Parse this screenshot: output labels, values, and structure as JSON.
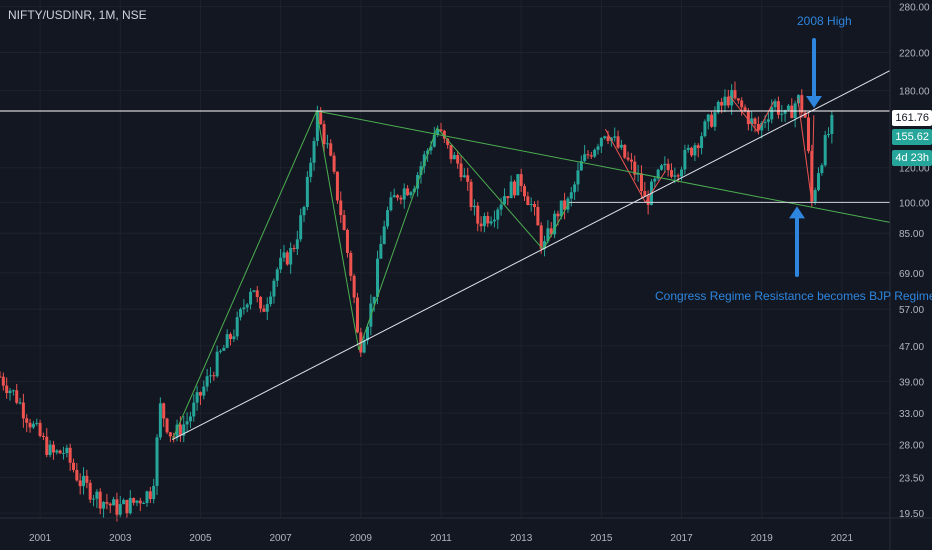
{
  "symbol_label": "NIFTY/USDINR, 1M, NSE",
  "annotations": {
    "top": "2008 High",
    "bottom": "Congress Regime Resistance becomes BJP Regimes"
  },
  "price_axis": {
    "ticks": [
      "280.00",
      "220.00",
      "180.00",
      "120.00",
      "100.00",
      "85.00",
      "69.00",
      "57.00",
      "47.00",
      "39.00",
      "33.00",
      "28.00",
      "23.50",
      "19.50"
    ],
    "ticks_values": [
      280,
      220,
      180,
      120,
      100,
      85,
      69,
      57,
      47,
      39,
      33,
      28,
      23.5,
      19.5
    ],
    "labels": {
      "level_2008": "161.76",
      "last_price": "155.62",
      "countdown": "4d 23h"
    }
  },
  "time_axis": {
    "ticks": [
      "2001",
      "2003",
      "2005",
      "2007",
      "2009",
      "2011",
      "2013",
      "2015",
      "2017",
      "2019",
      "2021"
    ]
  },
  "colors": {
    "background": "#131722",
    "up": "#26a69a",
    "down": "#ef5350",
    "green_line": "#4caf50",
    "red_line": "#ef5350",
    "trendline": "#e0e3eb",
    "annotation": "#2e86de",
    "label_bg_last": "#26a69a",
    "label_bg_level": "#ffffff"
  },
  "chart_data": {
    "type": "candlestick",
    "title": "NIFTY/USDINR, 1M, NSE",
    "x_range": [
      2000.0,
      2022.2
    ],
    "y_range": [
      19.0,
      290.0
    ],
    "y_scale": "log",
    "horizontal_levels": [
      161.76,
      100.0
    ],
    "price_path": [
      [
        2000.0,
        40.0
      ],
      [
        2000.4,
        36.0
      ],
      [
        2000.8,
        31.0
      ],
      [
        2001.3,
        26.5
      ],
      [
        2001.6,
        27.0
      ],
      [
        2002.0,
        23.0
      ],
      [
        2002.5,
        21.0
      ],
      [
        2002.9,
        20.0
      ],
      [
        2003.3,
        20.5
      ],
      [
        2003.8,
        22.0
      ],
      [
        2004.0,
        34.0
      ],
      [
        2004.3,
        29.0
      ],
      [
        2004.7,
        32.0
      ],
      [
        2005.1,
        38.0
      ],
      [
        2005.5,
        45.0
      ],
      [
        2005.9,
        52.0
      ],
      [
        2006.3,
        66.0
      ],
      [
        2006.5,
        55.0
      ],
      [
        2006.9,
        70.0
      ],
      [
        2007.3,
        78.0
      ],
      [
        2007.6,
        98.0
      ],
      [
        2007.9,
        160.0
      ],
      [
        2008.2,
        130.0
      ],
      [
        2008.5,
        95.0
      ],
      [
        2008.8,
        65.0
      ],
      [
        2008.95,
        46.0
      ],
      [
        2009.3,
        60.0
      ],
      [
        2009.6,
        92.0
      ],
      [
        2009.9,
        105.0
      ],
      [
        2010.3,
        110.0
      ],
      [
        2010.9,
        148.0
      ],
      [
        2011.2,
        130.0
      ],
      [
        2011.5,
        120.0
      ],
      [
        2011.9,
        90.0
      ],
      [
        2012.3,
        95.0
      ],
      [
        2012.6,
        105.0
      ],
      [
        2013.0,
        112.0
      ],
      [
        2013.3,
        96.0
      ],
      [
        2013.55,
        78.0
      ],
      [
        2013.9,
        95.0
      ],
      [
        2014.2,
        100.0
      ],
      [
        2014.5,
        122.0
      ],
      [
        2015.1,
        147.0
      ],
      [
        2015.5,
        130.0
      ],
      [
        2015.9,
        115.0
      ],
      [
        2016.1,
        100.0
      ],
      [
        2016.5,
        118.0
      ],
      [
        2016.9,
        120.0
      ],
      [
        2017.3,
        135.0
      ],
      [
        2017.8,
        158.0
      ],
      [
        2018.2,
        175.0
      ],
      [
        2018.6,
        160.0
      ],
      [
        2018.9,
        145.0
      ],
      [
        2019.3,
        170.0
      ],
      [
        2019.6,
        155.0
      ],
      [
        2019.9,
        173.0
      ],
      [
        2020.1,
        155.0
      ],
      [
        2020.25,
        100.0
      ],
      [
        2020.4,
        118.0
      ],
      [
        2020.6,
        138.0
      ],
      [
        2020.8,
        155.6
      ]
    ],
    "series": [
      {
        "name": "Green Zigzag",
        "segments": [
          [
            [
              2004.3,
              28.7
            ],
            [
              2007.9,
              161.76
            ]
          ],
          [
            [
              2007.9,
              161.76
            ],
            [
              2008.95,
              46.0
            ]
          ],
          [
            [
              2008.95,
              46.0
            ],
            [
              2010.9,
              148.0
            ]
          ],
          [
            [
              2010.9,
              148.0
            ],
            [
              2013.55,
              78.0
            ]
          ],
          [
            [
              2013.55,
              78.0
            ],
            [
              2014.2,
              100.0
            ]
          ]
        ]
      },
      {
        "name": "Red Zigzag",
        "segments": [
          [
            [
              2015.1,
              147.0
            ],
            [
              2016.1,
              100.0
            ]
          ],
          [
            [
              2016.1,
              100.0
            ],
            [
              2016.6,
              118.0
            ]
          ],
          [
            [
              2018.2,
              175.0
            ],
            [
              2018.9,
              145.0
            ]
          ],
          [
            [
              2018.9,
              145.0
            ],
            [
              2019.3,
              170.0
            ]
          ],
          [
            [
              2019.9,
              173.0
            ],
            [
              2020.25,
              100.0
            ]
          ],
          [
            [
              2020.25,
              100.0
            ],
            [
              2020.3,
              158.0
            ]
          ]
        ]
      },
      {
        "name": "Ascending Trendline",
        "segments": [
          [
            [
              2004.3,
              28.7
            ],
            [
              2022.2,
              200.0
            ]
          ]
        ]
      },
      {
        "name": "Descending Trendline",
        "segments": [
          [
            [
              2007.9,
              161.76
            ],
            [
              2022.2,
              90.0
            ]
          ]
        ]
      }
    ]
  }
}
